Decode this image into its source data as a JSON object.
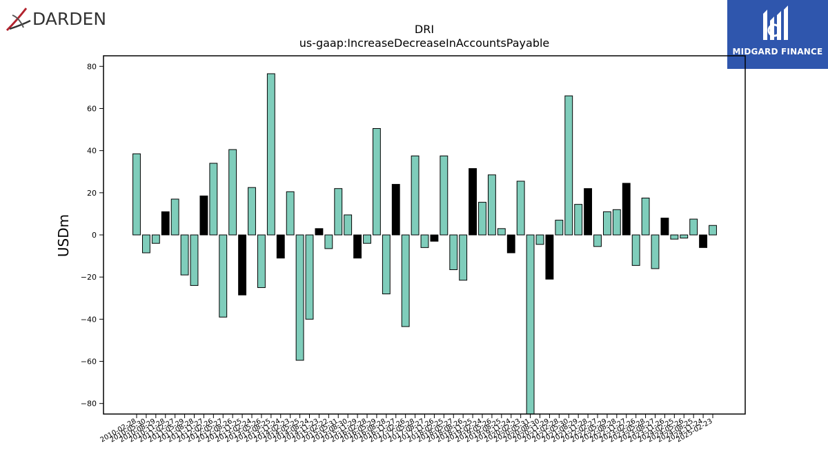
{
  "brand": {
    "left_wordmark": "DARDEN",
    "right_wordmark": "MIDGARD FINANCE"
  },
  "colors": {
    "bar_default": "#7fcdbb",
    "bar_highlight": "#000000",
    "right_brand_bg": "#2f56ad",
    "left_logo_red": "#b2232e"
  },
  "chart_data": {
    "type": "bar",
    "title": "DRI",
    "subtitle": "us-gaap:IncreaseDecreaseInAccountsPayable",
    "xlabel": "",
    "ylabel": "USDm",
    "ylim": [
      -85,
      85
    ],
    "yticks": [
      -80,
      -60,
      -40,
      -20,
      0,
      20,
      40,
      60,
      80
    ],
    "grid": false,
    "categories": [
      "2010-02-28",
      "2010-05-30",
      "2010-08-29",
      "2010-11-28",
      "2011-02-27",
      "2011-05-29",
      "2011-08-28",
      "2011-11-27",
      "2012-02-26",
      "2012-05-27",
      "2012-08-26",
      "2012-11-25",
      "2013-02-24",
      "2013-05-26",
      "2013-08-25",
      "2013-11-24",
      "2014-02-23",
      "2014-05-25",
      "2014-08-24",
      "2014-11-23",
      "2015-02-22",
      "2015-05-31",
      "2015-08-30",
      "2015-11-29",
      "2016-02-28",
      "2016-05-29",
      "2016-08-28",
      "2016-11-27",
      "2017-02-26",
      "2017-05-28",
      "2017-08-27",
      "2017-11-26",
      "2018-02-25",
      "2018-05-27",
      "2018-08-26",
      "2018-11-25",
      "2019-02-24",
      "2019-05-26",
      "2019-08-25",
      "2019-11-24",
      "2020-02-23",
      "2020-05-31",
      "2020-08-30",
      "2020-11-29",
      "2021-02-28",
      "2021-05-30",
      "2021-08-29",
      "2021-11-28",
      "2022-02-27",
      "2022-05-29",
      "2022-08-28",
      "2022-11-27",
      "2023-02-26",
      "2023-05-28",
      "2023-08-27",
      "2023-11-26",
      "2024-02-25",
      "2024-05-26",
      "2024-08-25",
      "2024-11-24",
      "2025-02-23"
    ],
    "values": [
      38.5,
      -8.5,
      -4.0,
      11.0,
      17.0,
      -19.0,
      -24.0,
      18.5,
      34.0,
      -39.0,
      40.5,
      -28.5,
      22.5,
      -25.0,
      76.5,
      -11.0,
      20.5,
      -59.5,
      -40.0,
      3.0,
      -6.5,
      22.0,
      9.5,
      -11.0,
      -4.0,
      50.5,
      -28.0,
      24.0,
      -43.5,
      37.5,
      -6.0,
      -3.0,
      37.5,
      -16.5,
      -21.5,
      31.5,
      15.5,
      28.5,
      3.0,
      -8.5,
      25.5,
      -95.0,
      -4.5,
      -21.0,
      7.0,
      66.0,
      14.5,
      22.0,
      -5.5,
      11.0,
      12.0,
      24.5,
      -14.5,
      17.5,
      -16.0,
      8.0,
      -2.0,
      -1.5,
      7.5,
      -6.0,
      4.5
    ],
    "highlight": [
      false,
      false,
      false,
      true,
      false,
      false,
      false,
      true,
      false,
      false,
      false,
      true,
      false,
      false,
      false,
      true,
      false,
      false,
      false,
      true,
      false,
      false,
      false,
      true,
      false,
      false,
      false,
      true,
      false,
      false,
      false,
      true,
      false,
      false,
      false,
      true,
      false,
      false,
      false,
      true,
      false,
      false,
      false,
      true,
      false,
      false,
      false,
      true,
      false,
      false,
      false,
      true,
      false,
      false,
      false,
      true,
      false,
      false,
      false,
      true,
      false
    ]
  }
}
